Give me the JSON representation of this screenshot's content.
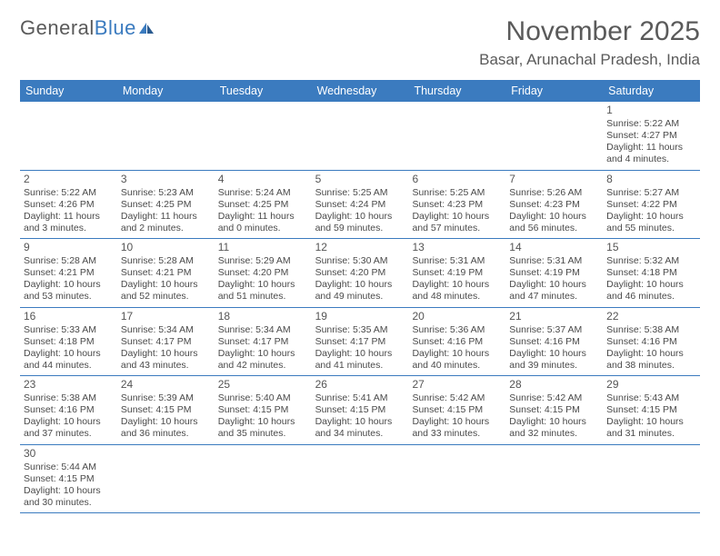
{
  "logo": {
    "part1": "General",
    "part2": "Blue"
  },
  "title": "November 2025",
  "location": "Basar, Arunachal Pradesh, India",
  "colors": {
    "header_bg": "#3b7bbf",
    "header_text": "#ffffff",
    "border": "#3b7bbf",
    "text": "#4a4a4a",
    "title_text": "#5a5a5a"
  },
  "weekdays": [
    "Sunday",
    "Monday",
    "Tuesday",
    "Wednesday",
    "Thursday",
    "Friday",
    "Saturday"
  ],
  "weeks": [
    [
      {
        "empty": true
      },
      {
        "empty": true
      },
      {
        "empty": true
      },
      {
        "empty": true
      },
      {
        "empty": true
      },
      {
        "empty": true
      },
      {
        "day": "1",
        "sunrise": "Sunrise: 5:22 AM",
        "sunset": "Sunset: 4:27 PM",
        "daylight": "Daylight: 11 hours and 4 minutes."
      }
    ],
    [
      {
        "day": "2",
        "sunrise": "Sunrise: 5:22 AM",
        "sunset": "Sunset: 4:26 PM",
        "daylight": "Daylight: 11 hours and 3 minutes."
      },
      {
        "day": "3",
        "sunrise": "Sunrise: 5:23 AM",
        "sunset": "Sunset: 4:25 PM",
        "daylight": "Daylight: 11 hours and 2 minutes."
      },
      {
        "day": "4",
        "sunrise": "Sunrise: 5:24 AM",
        "sunset": "Sunset: 4:25 PM",
        "daylight": "Daylight: 11 hours and 0 minutes."
      },
      {
        "day": "5",
        "sunrise": "Sunrise: 5:25 AM",
        "sunset": "Sunset: 4:24 PM",
        "daylight": "Daylight: 10 hours and 59 minutes."
      },
      {
        "day": "6",
        "sunrise": "Sunrise: 5:25 AM",
        "sunset": "Sunset: 4:23 PM",
        "daylight": "Daylight: 10 hours and 57 minutes."
      },
      {
        "day": "7",
        "sunrise": "Sunrise: 5:26 AM",
        "sunset": "Sunset: 4:23 PM",
        "daylight": "Daylight: 10 hours and 56 minutes."
      },
      {
        "day": "8",
        "sunrise": "Sunrise: 5:27 AM",
        "sunset": "Sunset: 4:22 PM",
        "daylight": "Daylight: 10 hours and 55 minutes."
      }
    ],
    [
      {
        "day": "9",
        "sunrise": "Sunrise: 5:28 AM",
        "sunset": "Sunset: 4:21 PM",
        "daylight": "Daylight: 10 hours and 53 minutes."
      },
      {
        "day": "10",
        "sunrise": "Sunrise: 5:28 AM",
        "sunset": "Sunset: 4:21 PM",
        "daylight": "Daylight: 10 hours and 52 minutes."
      },
      {
        "day": "11",
        "sunrise": "Sunrise: 5:29 AM",
        "sunset": "Sunset: 4:20 PM",
        "daylight": "Daylight: 10 hours and 51 minutes."
      },
      {
        "day": "12",
        "sunrise": "Sunrise: 5:30 AM",
        "sunset": "Sunset: 4:20 PM",
        "daylight": "Daylight: 10 hours and 49 minutes."
      },
      {
        "day": "13",
        "sunrise": "Sunrise: 5:31 AM",
        "sunset": "Sunset: 4:19 PM",
        "daylight": "Daylight: 10 hours and 48 minutes."
      },
      {
        "day": "14",
        "sunrise": "Sunrise: 5:31 AM",
        "sunset": "Sunset: 4:19 PM",
        "daylight": "Daylight: 10 hours and 47 minutes."
      },
      {
        "day": "15",
        "sunrise": "Sunrise: 5:32 AM",
        "sunset": "Sunset: 4:18 PM",
        "daylight": "Daylight: 10 hours and 46 minutes."
      }
    ],
    [
      {
        "day": "16",
        "sunrise": "Sunrise: 5:33 AM",
        "sunset": "Sunset: 4:18 PM",
        "daylight": "Daylight: 10 hours and 44 minutes."
      },
      {
        "day": "17",
        "sunrise": "Sunrise: 5:34 AM",
        "sunset": "Sunset: 4:17 PM",
        "daylight": "Daylight: 10 hours and 43 minutes."
      },
      {
        "day": "18",
        "sunrise": "Sunrise: 5:34 AM",
        "sunset": "Sunset: 4:17 PM",
        "daylight": "Daylight: 10 hours and 42 minutes."
      },
      {
        "day": "19",
        "sunrise": "Sunrise: 5:35 AM",
        "sunset": "Sunset: 4:17 PM",
        "daylight": "Daylight: 10 hours and 41 minutes."
      },
      {
        "day": "20",
        "sunrise": "Sunrise: 5:36 AM",
        "sunset": "Sunset: 4:16 PM",
        "daylight": "Daylight: 10 hours and 40 minutes."
      },
      {
        "day": "21",
        "sunrise": "Sunrise: 5:37 AM",
        "sunset": "Sunset: 4:16 PM",
        "daylight": "Daylight: 10 hours and 39 minutes."
      },
      {
        "day": "22",
        "sunrise": "Sunrise: 5:38 AM",
        "sunset": "Sunset: 4:16 PM",
        "daylight": "Daylight: 10 hours and 38 minutes."
      }
    ],
    [
      {
        "day": "23",
        "sunrise": "Sunrise: 5:38 AM",
        "sunset": "Sunset: 4:16 PM",
        "daylight": "Daylight: 10 hours and 37 minutes."
      },
      {
        "day": "24",
        "sunrise": "Sunrise: 5:39 AM",
        "sunset": "Sunset: 4:15 PM",
        "daylight": "Daylight: 10 hours and 36 minutes."
      },
      {
        "day": "25",
        "sunrise": "Sunrise: 5:40 AM",
        "sunset": "Sunset: 4:15 PM",
        "daylight": "Daylight: 10 hours and 35 minutes."
      },
      {
        "day": "26",
        "sunrise": "Sunrise: 5:41 AM",
        "sunset": "Sunset: 4:15 PM",
        "daylight": "Daylight: 10 hours and 34 minutes."
      },
      {
        "day": "27",
        "sunrise": "Sunrise: 5:42 AM",
        "sunset": "Sunset: 4:15 PM",
        "daylight": "Daylight: 10 hours and 33 minutes."
      },
      {
        "day": "28",
        "sunrise": "Sunrise: 5:42 AM",
        "sunset": "Sunset: 4:15 PM",
        "daylight": "Daylight: 10 hours and 32 minutes."
      },
      {
        "day": "29",
        "sunrise": "Sunrise: 5:43 AM",
        "sunset": "Sunset: 4:15 PM",
        "daylight": "Daylight: 10 hours and 31 minutes."
      }
    ],
    [
      {
        "day": "30",
        "sunrise": "Sunrise: 5:44 AM",
        "sunset": "Sunset: 4:15 PM",
        "daylight": "Daylight: 10 hours and 30 minutes."
      },
      {
        "empty": true
      },
      {
        "empty": true
      },
      {
        "empty": true
      },
      {
        "empty": true
      },
      {
        "empty": true
      },
      {
        "empty": true
      }
    ]
  ]
}
